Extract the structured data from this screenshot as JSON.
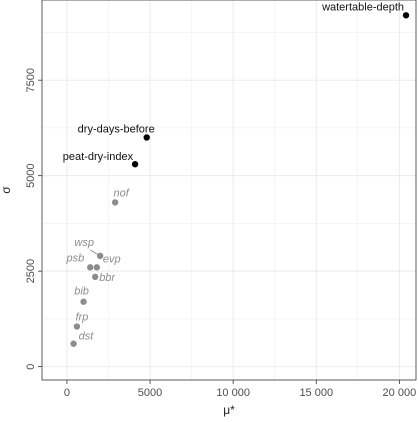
{
  "chart_data": {
    "type": "scatter",
    "xlabel": "μ*",
    "ylabel": "σ",
    "xlim": [
      -1500,
      21000
    ],
    "ylim": [
      -350,
      9600
    ],
    "grid": true,
    "x_ticks": [
      {
        "value": 0,
        "label": "0"
      },
      {
        "value": 5000,
        "label": "5000"
      },
      {
        "value": 10000,
        "label": "10 000"
      },
      {
        "value": 15000,
        "label": "15 000"
      },
      {
        "value": 20000,
        "label": "20 000"
      }
    ],
    "y_ticks": [
      {
        "value": 0,
        "label": "0"
      },
      {
        "value": 2500,
        "label": "2500"
      },
      {
        "value": 5000,
        "label": "5000"
      },
      {
        "value": 7500,
        "label": "7500"
      }
    ],
    "colors": {
      "significant": "#000000",
      "minor": "#8c8c8c",
      "grid": "#ebebeb",
      "panel_border": "#333333"
    },
    "points": [
      {
        "label": "watertable-depth",
        "x": 20400,
        "y": 9200,
        "group": "significant"
      },
      {
        "label": "dry-days-before",
        "x": 4800,
        "y": 6000,
        "group": "significant"
      },
      {
        "label": "peat-dry-index",
        "x": 4100,
        "y": 5300,
        "group": "significant"
      },
      {
        "label": "nof",
        "x": 2900,
        "y": 4300,
        "group": "minor"
      },
      {
        "label": "wsp",
        "x": 2000,
        "y": 2900,
        "group": "minor"
      },
      {
        "label": "evp",
        "x": 1800,
        "y": 2600,
        "group": "minor"
      },
      {
        "label": "psb",
        "x": 1400,
        "y": 2600,
        "group": "minor"
      },
      {
        "label": "bbr",
        "x": 1700,
        "y": 2350,
        "group": "minor"
      },
      {
        "label": "bib",
        "x": 1000,
        "y": 1700,
        "group": "minor"
      },
      {
        "label": "frp",
        "x": 600,
        "y": 1050,
        "group": "minor"
      },
      {
        "label": "dst",
        "x": 400,
        "y": 600,
        "group": "minor"
      }
    ]
  }
}
